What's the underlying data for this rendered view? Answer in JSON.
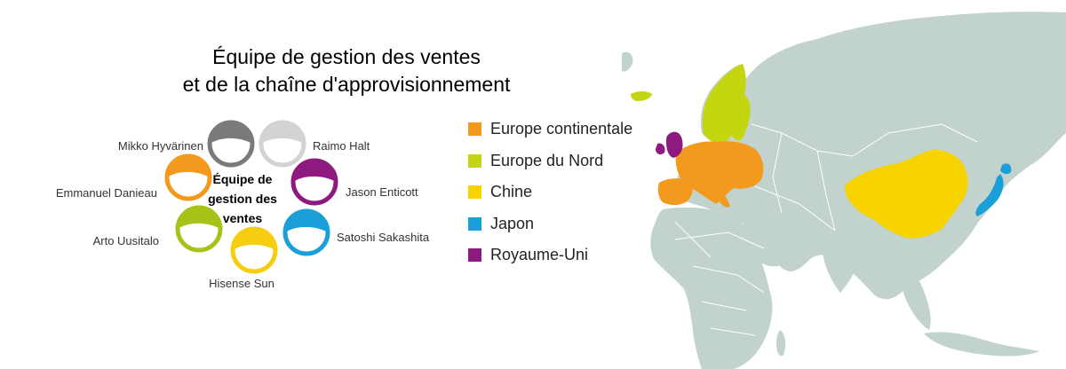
{
  "title": {
    "line1": "Équipe de gestion des ventes",
    "line2": "et de la chaîne d'approvisionnement"
  },
  "diagram": {
    "center_lines": [
      "Équipe de",
      "gestion des",
      "ventes"
    ],
    "members": [
      {
        "name": "Mikko Hyvärinen",
        "color": "#7a7a7a"
      },
      {
        "name": "Raimo Halt",
        "color": "#d3d3d3"
      },
      {
        "name": "Emmanuel Danieau",
        "color": "#f39a1e"
      },
      {
        "name": "Jason Enticott",
        "color": "#8e1a7f"
      },
      {
        "name": "Arto Uusitalo",
        "color": "#a8c21a"
      },
      {
        "name": "Satoshi Sakashita",
        "color": "#1a9fd9"
      },
      {
        "name": "Hisense Sun",
        "color": "#f5cf0f"
      }
    ]
  },
  "legend": [
    {
      "label": "Europe continentale",
      "color": "#f39a1e"
    },
    {
      "label": "Europe du Nord",
      "color": "#c3d60f"
    },
    {
      "label": "Chine",
      "color": "#f7d300"
    },
    {
      "label": "Japon",
      "color": "#1a9fd9"
    },
    {
      "label": "Royaume-Uni",
      "color": "#8e1a7f"
    }
  ],
  "map": {
    "land_color": "#c2d2cc",
    "border_color": "#ffffff"
  }
}
